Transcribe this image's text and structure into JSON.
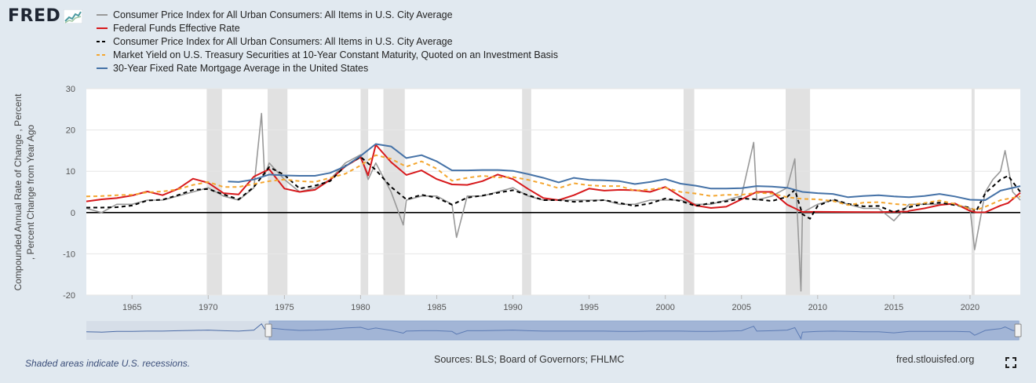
{
  "logo": {
    "text": "FRED",
    "icon": "fred-chart-logo-icon"
  },
  "legend": [
    {
      "label": "Consumer Price Index for All Urban Consumers: All Items in U.S. City Average",
      "color": "#999999",
      "style": "solid"
    },
    {
      "label": "Federal Funds Effective Rate",
      "color": "#d7191c",
      "style": "solid"
    },
    {
      "label": "Consumer Price Index for All Urban Consumers: All Items in U.S. City Average",
      "color": "#000000",
      "style": "dashed"
    },
    {
      "label": "Market Yield on U.S. Treasury Securities at 10-Year Constant Maturity, Quoted on an Investment Basis",
      "color": "#f4a630",
      "style": "dashed"
    },
    {
      "label": "30-Year Fixed Rate Mortgage Average in the United States",
      "color": "#4572a7",
      "style": "solid"
    }
  ],
  "chart_data": {
    "type": "line",
    "ylabel_line1": "Compounded Annual Rate of Change , Percent",
    "ylabel_line2": ", Percent Change from Year Ago",
    "ylim": [
      -20,
      30
    ],
    "xlim": [
      1962.0,
      2023.3
    ],
    "yticks": [
      "30",
      "20",
      "10",
      "0",
      "-10",
      "-20"
    ],
    "xticks": [
      "1965",
      "1970",
      "1975",
      "1980",
      "1985",
      "1990",
      "1995",
      "2000",
      "2005",
      "2010",
      "2015",
      "2020"
    ],
    "zero_line": true,
    "grid": "horizontal",
    "recessions": [
      [
        1969.9,
        1970.9
      ],
      [
        1973.9,
        1975.2
      ],
      [
        1980.0,
        1980.5
      ],
      [
        1981.5,
        1982.9
      ],
      [
        1990.6,
        1991.2
      ],
      [
        2001.2,
        2001.9
      ],
      [
        2007.9,
        2009.5
      ],
      [
        2020.1,
        2020.3
      ]
    ],
    "series": [
      {
        "name": "Consumer Price Index for All Urban Consumers: All Items in U.S. City Average",
        "color": "#999999",
        "style": "solid",
        "x": [
          1962,
          1963,
          1964,
          1965,
          1966,
          1967,
          1968,
          1969,
          1970,
          1971,
          1972,
          1973,
          1973.5,
          1973.7,
          1974,
          1975,
          1976,
          1977,
          1978,
          1979,
          1980,
          1980.5,
          1981,
          1982,
          1982.8,
          1983,
          1984,
          1985,
          1986,
          1986.3,
          1987,
          1988,
          1989,
          1990,
          1991,
          1992,
          1993,
          1994,
          1995,
          1996,
          1997,
          1998,
          1999,
          2000,
          2001,
          2002,
          2003,
          2004,
          2005,
          2005.8,
          2006,
          2007,
          2008,
          2008.5,
          2008.9,
          2009,
          2010,
          2011,
          2012,
          2013,
          2014,
          2015,
          2016,
          2017,
          2018,
          2019,
          2020,
          2020.3,
          2021,
          2021.5,
          2022,
          2022.3,
          2022.8,
          2023.3
        ],
        "y": [
          1,
          0,
          2,
          2,
          3,
          3,
          4,
          5,
          6,
          4,
          3,
          6,
          24,
          9,
          12,
          8,
          5,
          6,
          8,
          12,
          14,
          8,
          12,
          5,
          -3,
          3,
          4,
          4,
          2,
          -6,
          4,
          4,
          5,
          6,
          4,
          3,
          3,
          3,
          3,
          3,
          2,
          2,
          3,
          3,
          3,
          2,
          2,
          3,
          4,
          17,
          3,
          4,
          6,
          13,
          -19,
          0,
          2,
          3,
          2,
          1,
          1,
          -2,
          2,
          2,
          2,
          2,
          1,
          -9,
          5,
          8,
          10,
          15,
          5,
          3
        ]
      },
      {
        "name": "Federal Funds Effective Rate",
        "color": "#d7191c",
        "style": "solid",
        "x": [
          1962,
          1963,
          1964,
          1965,
          1966,
          1967,
          1968,
          1969,
          1970,
          1971,
          1972,
          1973,
          1974,
          1975,
          1976,
          1977,
          1978,
          1979,
          1980,
          1980.5,
          1981,
          1982,
          1983,
          1984,
          1985,
          1986,
          1987,
          1988,
          1989,
          1990,
          1991,
          1992,
          1993,
          1994,
          1995,
          1996,
          1997,
          1998,
          1999,
          2000,
          2001,
          2002,
          2003,
          2004,
          2005,
          2006,
          2007,
          2008,
          2009,
          2010,
          2012,
          2014,
          2015.9,
          2016,
          2017,
          2018,
          2019,
          2020,
          2020.4,
          2021,
          2022,
          2022.5,
          2023.3
        ],
        "y": [
          2.7,
          3.2,
          3.5,
          4.1,
          5.1,
          4.2,
          5.7,
          8.2,
          7.2,
          4.7,
          4.4,
          8.7,
          10.5,
          5.8,
          5.0,
          5.5,
          7.9,
          11.2,
          13.4,
          9.0,
          16.4,
          12.2,
          9.1,
          10.2,
          8.1,
          6.8,
          6.7,
          7.6,
          9.2,
          8.1,
          5.7,
          3.5,
          3.0,
          4.2,
          5.8,
          5.3,
          5.5,
          5.4,
          5.0,
          6.2,
          3.9,
          1.7,
          1.1,
          1.4,
          3.2,
          5.0,
          5.0,
          1.9,
          0.16,
          0.18,
          0.14,
          0.09,
          0.24,
          0.4,
          1.0,
          1.8,
          2.2,
          0.4,
          0.05,
          0.08,
          1.7,
          2.3,
          4.8
        ]
      },
      {
        "name": "Consumer Price Index for All Urban Consumers: All Items in U.S. City Average",
        "color": "#000000",
        "style": "dashed",
        "x": [
          1962,
          1963,
          1964,
          1965,
          1966,
          1967,
          1968,
          1969,
          1970,
          1971,
          1972,
          1973,
          1974,
          1975,
          1976,
          1977,
          1978,
          1979,
          1980,
          1981,
          1982,
          1983,
          1984,
          1985,
          1986,
          1987,
          1988,
          1989,
          1990,
          1991,
          1992,
          1993,
          1994,
          1995,
          1996,
          1997,
          1998,
          1999,
          2000,
          2001,
          2002,
          2003,
          2004,
          2005,
          2006,
          2007,
          2008,
          2008.5,
          2009,
          2009.5,
          2010,
          2011,
          2012,
          2013,
          2014,
          2015,
          2016,
          2017,
          2018,
          2019,
          2020,
          2020.4,
          2021,
          2022,
          2022.5,
          2023.3
        ],
        "y": [
          1.2,
          1.2,
          1.3,
          1.7,
          2.9,
          3.1,
          4.2,
          5.5,
          5.7,
          4.4,
          3.2,
          6.2,
          11.0,
          9.1,
          5.8,
          6.5,
          7.6,
          11.3,
          13.5,
          10.3,
          6.2,
          3.2,
          4.3,
          3.6,
          1.9,
          3.6,
          4.1,
          4.8,
          5.4,
          4.2,
          3.0,
          3.0,
          2.6,
          2.8,
          3.0,
          2.3,
          1.6,
          2.2,
          3.4,
          2.8,
          1.6,
          2.3,
          2.7,
          3.4,
          3.2,
          2.8,
          3.8,
          5.5,
          -0.4,
          -1.5,
          1.6,
          3.2,
          2.1,
          1.5,
          1.6,
          0.1,
          1.3,
          2.1,
          2.4,
          1.8,
          1.2,
          0.3,
          4.7,
          8.0,
          8.9,
          5.0
        ]
      },
      {
        "name": "Market Yield on U.S. Treasury Securities at 10-Year Constant Maturity, Quoted on an Investment Basis",
        "color": "#f4a630",
        "style": "dashed",
        "x": [
          1962,
          1963,
          1964,
          1965,
          1966,
          1967,
          1968,
          1969,
          1970,
          1971,
          1972,
          1973,
          1974,
          1975,
          1976,
          1977,
          1978,
          1979,
          1980,
          1981,
          1982,
          1983,
          1984,
          1985,
          1986,
          1987,
          1988,
          1989,
          1990,
          1991,
          1992,
          1993,
          1994,
          1995,
          1996,
          1997,
          1998,
          1999,
          2000,
          2001,
          2002,
          2003,
          2004,
          2005,
          2006,
          2007,
          2008,
          2009,
          2010,
          2011,
          2012,
          2013,
          2014,
          2015,
          2016,
          2017,
          2018,
          2019,
          2020,
          2020.5,
          2021,
          2022,
          2023.3
        ],
        "y": [
          3.9,
          4.0,
          4.2,
          4.3,
          4.9,
          5.1,
          5.6,
          6.7,
          7.4,
          6.2,
          6.2,
          6.9,
          7.6,
          8.0,
          7.6,
          7.4,
          8.4,
          9.4,
          11.4,
          13.9,
          13.0,
          11.1,
          12.4,
          10.6,
          7.7,
          8.4,
          8.9,
          8.5,
          8.6,
          7.9,
          7.0,
          5.9,
          7.1,
          6.6,
          6.4,
          6.4,
          5.3,
          5.6,
          6.0,
          5.0,
          4.6,
          4.0,
          4.3,
          4.3,
          4.8,
          4.6,
          3.7,
          3.3,
          3.2,
          2.8,
          1.8,
          2.4,
          2.5,
          2.1,
          1.8,
          2.3,
          2.9,
          2.1,
          0.9,
          0.7,
          1.4,
          3.0,
          3.9
        ]
      },
      {
        "name": "30-Year Fixed Rate Mortgage Average in the United States",
        "color": "#4572a7",
        "style": "solid",
        "x": [
          1971.3,
          1972,
          1973,
          1974,
          1975,
          1976,
          1977,
          1978,
          1979,
          1980,
          1981,
          1982,
          1983,
          1984,
          1985,
          1986,
          1987,
          1988,
          1989,
          1990,
          1991,
          1992,
          1993,
          1994,
          1995,
          1996,
          1997,
          1998,
          1999,
          2000,
          2001,
          2002,
          2003,
          2004,
          2005,
          2006,
          2007,
          2008,
          2009,
          2010,
          2011,
          2012,
          2013,
          2014,
          2015,
          2016,
          2017,
          2018,
          2019,
          2020,
          2021,
          2022,
          2023.3
        ],
        "y": [
          7.5,
          7.4,
          8.0,
          9.2,
          9.0,
          8.9,
          8.9,
          9.6,
          11.2,
          13.7,
          16.6,
          16.0,
          13.2,
          13.9,
          12.4,
          10.2,
          10.2,
          10.3,
          10.3,
          10.1,
          9.3,
          8.4,
          7.3,
          8.4,
          7.9,
          7.8,
          7.6,
          6.9,
          7.4,
          8.1,
          7.0,
          6.5,
          5.8,
          5.8,
          5.9,
          6.4,
          6.3,
          6.0,
          5.0,
          4.7,
          4.5,
          3.7,
          4.0,
          4.2,
          3.9,
          3.7,
          4.0,
          4.5,
          3.9,
          3.1,
          3.0,
          5.3,
          6.4
        ]
      }
    ]
  },
  "footer": {
    "note": "Shaded areas indicate U.S. recessions.",
    "sources": "Sources: BLS; Board of Governors; FHLMC",
    "site": "fred.stlouisfed.org"
  }
}
